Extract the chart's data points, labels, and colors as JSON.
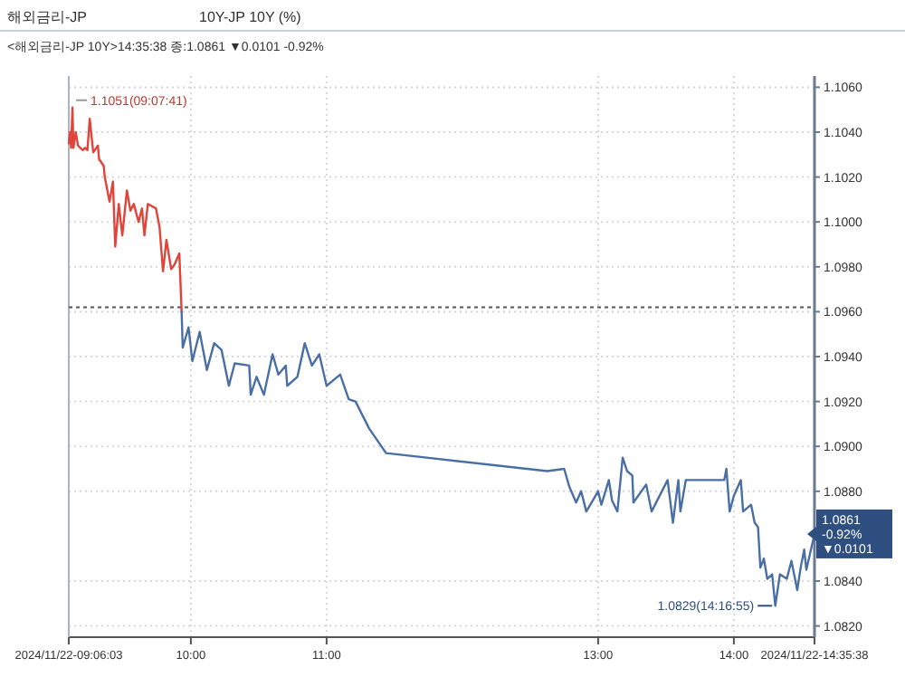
{
  "chart_data": {
    "type": "line",
    "title": "해외금리-JP",
    "subtitle": "10Y-JP 10Y (%)",
    "annotations": [
      "<해외금리-JP 10Y>14:35:38 종:1.0861 ▼0.0101 -0.92%",
      {
        "text": "1.1051(09:07:41)",
        "x": 9.128,
        "y": 1.1051
      },
      {
        "text": "1.0829(14:16:55)",
        "x": 14.282,
        "y": 1.0829
      },
      {
        "text": "1.0861 -0.92% ▼0.0101",
        "x": 14.5939,
        "y": 1.0861
      }
    ],
    "series": [
      {
        "color": "#e0443a",
        "x": [
          9.101,
          9.11,
          9.118,
          9.128,
          9.135,
          9.152,
          9.169,
          9.186,
          9.204,
          9.221,
          9.238,
          9.255,
          9.281,
          9.315,
          9.324,
          9.358,
          9.366,
          9.401,
          9.426,
          9.443,
          9.469,
          9.495,
          9.529,
          9.555,
          9.58,
          9.615,
          9.64,
          9.658,
          9.683,
          9.743,
          9.769,
          9.795,
          9.82,
          9.855,
          9.88,
          9.915,
          9.932
        ],
        "values": [
          1.1035,
          1.104,
          1.1033,
          1.1051,
          1.1033,
          1.104,
          1.1034,
          1.1033,
          1.1032,
          1.1033,
          1.1032,
          1.1046,
          1.1031,
          1.1034,
          1.1028,
          1.1025,
          1.102,
          1.1009,
          1.1018,
          1.0989,
          1.1008,
          1.0994,
          1.1014,
          1.1005,
          1.1008,
          1.1,
          1.1006,
          1.0994,
          1.1008,
          1.1006,
          1.0998,
          1.0978,
          1.0992,
          1.0979,
          1.0981,
          1.0986,
          1.096
        ]
      },
      {
        "color": "#4a6fa5",
        "x": [
          9.932,
          9.94,
          9.983,
          10.011,
          10.065,
          10.118,
          10.172,
          10.226,
          10.28,
          10.323,
          10.43,
          10.441,
          10.484,
          10.538,
          10.602,
          10.645,
          10.699,
          10.71,
          10.785,
          10.839,
          10.892,
          10.946,
          11.0,
          11.1,
          11.163,
          11.213,
          11.313,
          11.438,
          12.625,
          12.75,
          12.788,
          12.838,
          12.875,
          12.913,
          13.0,
          13.024,
          13.079,
          13.102,
          13.142,
          13.181,
          13.213,
          13.252,
          13.26,
          13.354,
          13.394,
          13.512,
          13.551,
          13.591,
          13.606,
          13.646,
          13.929,
          13.945,
          13.969,
          14.0,
          14.051,
          14.068,
          14.127,
          14.153,
          14.178,
          14.195,
          14.221,
          14.246,
          14.282,
          14.305,
          14.339,
          14.39,
          14.424,
          14.467,
          14.492,
          14.518,
          14.534,
          14.5939
        ],
        "values": [
          1.096,
          1.0944,
          1.0953,
          1.0938,
          1.0951,
          1.0934,
          1.0946,
          1.0943,
          1.0927,
          1.0937,
          1.0936,
          1.0923,
          1.0931,
          1.0923,
          1.0941,
          1.0932,
          1.0936,
          1.0927,
          1.0931,
          1.0946,
          1.0936,
          1.0941,
          1.0927,
          1.0932,
          1.0921,
          1.092,
          1.0908,
          1.0897,
          1.0889,
          1.089,
          1.0882,
          1.0875,
          1.088,
          1.0871,
          1.088,
          1.0874,
          1.0885,
          1.0876,
          1.0871,
          1.0895,
          1.0889,
          1.0887,
          1.0875,
          1.0883,
          1.0871,
          1.0885,
          1.0866,
          1.0885,
          1.0871,
          1.0885,
          1.0885,
          1.089,
          1.0871,
          1.0878,
          1.0885,
          1.0871,
          1.0874,
          1.0866,
          1.0864,
          1.0846,
          1.085,
          1.0841,
          1.0843,
          1.0829,
          1.0843,
          1.0841,
          1.0849,
          1.0836,
          1.0846,
          1.0854,
          1.0845,
          1.0861
        ]
      }
    ],
    "xlim": [
      9.1008,
      14.5939
    ],
    "xticks": [
      {
        "value": 9.1008,
        "label": "2024/11/22-09:06:03"
      },
      {
        "value": 10,
        "label": "10:00"
      },
      {
        "value": 11,
        "label": "11:00"
      },
      {
        "value": 13,
        "label": "13:00"
      },
      {
        "value": 14,
        "label": "14:00"
      },
      {
        "value": 14.5939,
        "label": "2024/11/22-14:35:38"
      }
    ],
    "ylim": [
      1.0815,
      1.1065
    ],
    "yticks": [
      {
        "value": 1.082,
        "label": "1.0820"
      },
      {
        "value": 1.084,
        "label": "1.0840"
      },
      {
        "value": 1.088,
        "label": "1.0880"
      },
      {
        "value": 1.09,
        "label": "1.0900"
      },
      {
        "value": 1.092,
        "label": "1.0920"
      },
      {
        "value": 1.094,
        "label": "1.0940"
      },
      {
        "value": 1.096,
        "label": "1.0960"
      },
      {
        "value": 1.098,
        "label": "1.0980"
      },
      {
        "value": 1.1,
        "label": "1.1000"
      },
      {
        "value": 1.102,
        "label": "1.1020"
      },
      {
        "value": 1.104,
        "label": "1.1040"
      },
      {
        "value": 1.106,
        "label": "1.1060"
      }
    ],
    "ref_lines": [
      {
        "axis": "y",
        "value": 1.0962,
        "color": "#555555",
        "line_style": "dotted"
      }
    ],
    "grid": true,
    "marker": "none",
    "line_style": "solid"
  }
}
